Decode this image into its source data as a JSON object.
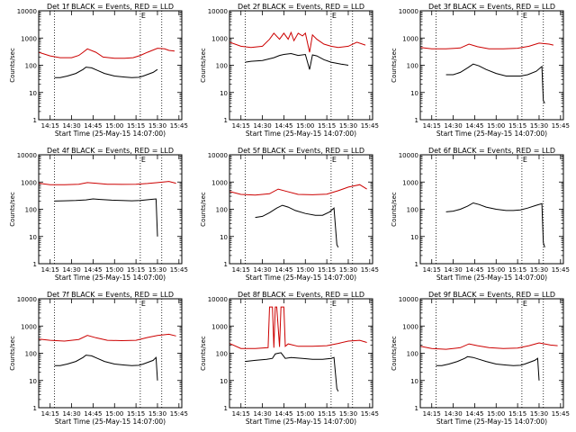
{
  "chart_data": [
    {
      "type": "line",
      "title": "Det 1f BLACK = Events, RED = LLD",
      "xlabel": "Start Time (25-May-15 14:07:00)",
      "ylabel": "Counts/sec",
      "x_ticks": [
        "14:15",
        "14:30",
        "14:45",
        "15:00",
        "15:15",
        "15:30",
        "15:45"
      ],
      "y_ticks": [
        "1",
        "10",
        "100",
        "1000",
        "10000"
      ],
      "yscale": "log",
      "ylim": [
        1,
        10000
      ],
      "xlim": [
        "14:07",
        "15:47"
      ],
      "markers": [
        "14:18",
        "15:18",
        "15:33"
      ],
      "flag": "E",
      "series": [
        {
          "color": "#cc0000",
          "x": [
            "14:07",
            "14:15",
            "14:22",
            "14:30",
            "14:35",
            "14:38",
            "14:41",
            "14:47",
            "14:52",
            "15:00",
            "15:07",
            "15:13",
            "15:18",
            "15:23",
            "15:30",
            "15:35",
            "15:38",
            "15:42"
          ],
          "y": [
            300,
            220,
            190,
            190,
            230,
            300,
            400,
            300,
            200,
            180,
            180,
            190,
            230,
            300,
            420,
            400,
            350,
            330
          ]
        },
        {
          "color": "#000000",
          "x": [
            "14:18",
            "14:22",
            "14:27",
            "14:33",
            "14:38",
            "14:40",
            "14:44",
            "14:48",
            "14:53",
            "15:00",
            "15:07",
            "15:12",
            "15:17",
            "15:20",
            "15:27",
            "15:30"
          ],
          "y": [
            35,
            35,
            40,
            50,
            70,
            85,
            80,
            65,
            50,
            40,
            37,
            35,
            36,
            40,
            55,
            70
          ]
        }
      ]
    },
    {
      "type": "line",
      "title": "Det 2f BLACK = Events, RED = LLD",
      "xlabel": "Start Time (25-May-15 14:07:00)",
      "ylabel": "Counts/sec",
      "x_ticks": [
        "14:15",
        "14:30",
        "14:45",
        "15:00",
        "15:15",
        "15:30",
        "15:45"
      ],
      "y_ticks": [
        "1",
        "10",
        "100",
        "1000",
        "10000"
      ],
      "yscale": "log",
      "ylim": [
        1,
        10000
      ],
      "xlim": [
        "14:07",
        "15:47"
      ],
      "markers": [
        "14:18",
        "15:18",
        "15:33"
      ],
      "flag": "E",
      "series": [
        {
          "color": "#cc0000",
          "x": [
            "14:07",
            "14:15",
            "14:22",
            "14:30",
            "14:35",
            "14:38",
            "14:42",
            "14:45",
            "14:48",
            "14:50",
            "14:52",
            "14:55",
            "14:58",
            "15:00",
            "15:03",
            "15:05",
            "15:08",
            "15:13",
            "15:18",
            "15:23",
            "15:30",
            "15:36",
            "15:42"
          ],
          "y": [
            700,
            500,
            450,
            500,
            900,
            1500,
            900,
            1500,
            900,
            1600,
            800,
            1500,
            1200,
            1500,
            300,
            1300,
            900,
            600,
            500,
            450,
            500,
            700,
            550
          ]
        },
        {
          "color": "#000000",
          "x": [
            "14:18",
            "14:22",
            "14:30",
            "14:38",
            "14:42",
            "14:45",
            "14:50",
            "14:55",
            "15:00",
            "15:03",
            "15:05",
            "15:08",
            "15:13",
            "15:18",
            "15:25",
            "15:30"
          ],
          "y": [
            130,
            140,
            150,
            190,
            230,
            250,
            270,
            230,
            250,
            70,
            240,
            220,
            160,
            130,
            110,
            100
          ]
        }
      ]
    },
    {
      "type": "line",
      "title": "Det 3f BLACK = Events, RED = LLD",
      "xlabel": "Start Time (25-May-15 14:07:00)",
      "ylabel": "Counts/sec",
      "x_ticks": [
        "14:15",
        "14:30",
        "14:45",
        "15:00",
        "15:15",
        "15:30",
        "15:45"
      ],
      "y_ticks": [
        "1",
        "10",
        "100",
        "1000",
        "10000"
      ],
      "yscale": "log",
      "ylim": [
        1,
        10000
      ],
      "xlim": [
        "14:07",
        "15:47"
      ],
      "markers": [
        "14:18",
        "15:18",
        "15:33"
      ],
      "flag": "E",
      "series": [
        {
          "color": "#cc0000",
          "x": [
            "14:07",
            "14:15",
            "14:25",
            "14:35",
            "14:41",
            "14:47",
            "14:55",
            "15:05",
            "15:15",
            "15:23",
            "15:30",
            "15:37",
            "15:40"
          ],
          "y": [
            450,
            400,
            400,
            430,
            600,
            480,
            400,
            400,
            420,
            500,
            650,
            600,
            550
          ]
        },
        {
          "color": "#000000",
          "x": [
            "14:25",
            "14:30",
            "14:35",
            "14:40",
            "14:44",
            "14:48",
            "14:53",
            "15:00",
            "15:07",
            "15:12",
            "15:17",
            "15:22",
            "15:28",
            "15:32",
            "15:33",
            "15:34"
          ],
          "y": [
            45,
            45,
            55,
            80,
            110,
            95,
            70,
            50,
            40,
            40,
            40,
            45,
            60,
            90,
            5,
            4
          ]
        }
      ]
    },
    {
      "type": "line",
      "title": "Det 4f BLACK = Events, RED = LLD",
      "xlabel": "Start Time (25-May-15 14:07:00)",
      "ylabel": "Counts/sec",
      "x_ticks": [
        "14:15",
        "14:30",
        "14:45",
        "15:00",
        "15:15",
        "15:30",
        "15:45"
      ],
      "y_ticks": [
        "1",
        "10",
        "100",
        "1000",
        "10000"
      ],
      "yscale": "log",
      "ylim": [
        1,
        10000
      ],
      "xlim": [
        "14:07",
        "15:47"
      ],
      "markers": [
        "14:18",
        "15:18",
        "15:33"
      ],
      "flag": "E",
      "series": [
        {
          "color": "#cc0000",
          "x": [
            "14:07",
            "14:15",
            "14:25",
            "14:35",
            "14:41",
            "14:47",
            "14:55",
            "15:05",
            "15:15",
            "15:23",
            "15:30",
            "15:38",
            "15:43"
          ],
          "y": [
            900,
            800,
            800,
            830,
            950,
            900,
            830,
            820,
            830,
            880,
            950,
            1050,
            900
          ]
        },
        {
          "color": "#000000",
          "x": [
            "14:18",
            "14:25",
            "14:33",
            "14:40",
            "14:45",
            "14:50",
            "14:58",
            "15:05",
            "15:12",
            "15:18",
            "15:25",
            "15:29",
            "15:30"
          ],
          "y": [
            200,
            205,
            210,
            220,
            240,
            230,
            215,
            210,
            205,
            210,
            230,
            240,
            10
          ]
        }
      ]
    },
    {
      "type": "line",
      "title": "Det 5f BLACK = Events, RED = LLD",
      "xlabel": "Start Time (25-May-15 14:07:00)",
      "ylabel": "Counts/sec",
      "x_ticks": [
        "14:15",
        "14:30",
        "14:45",
        "15:00",
        "15:15",
        "15:30",
        "15:45"
      ],
      "y_ticks": [
        "1",
        "10",
        "100",
        "1000",
        "10000"
      ],
      "yscale": "log",
      "ylim": [
        1,
        10000
      ],
      "xlim": [
        "14:07",
        "15:47"
      ],
      "markers": [
        "14:18",
        "15:18",
        "15:33"
      ],
      "flag": "E",
      "series": [
        {
          "color": "#cc0000",
          "x": [
            "14:07",
            "14:15",
            "14:25",
            "14:35",
            "14:41",
            "14:47",
            "14:55",
            "15:05",
            "15:15",
            "15:23",
            "15:30",
            "15:38",
            "15:43"
          ],
          "y": [
            450,
            350,
            330,
            370,
            550,
            450,
            350,
            340,
            360,
            480,
            650,
            800,
            550
          ]
        },
        {
          "color": "#000000",
          "x": [
            "14:25",
            "14:30",
            "14:35",
            "14:40",
            "14:44",
            "14:48",
            "14:53",
            "15:00",
            "15:07",
            "15:12",
            "15:17",
            "15:20",
            "15:22",
            "15:23"
          ],
          "y": [
            50,
            55,
            75,
            110,
            140,
            120,
            90,
            70,
            60,
            60,
            80,
            110,
            5,
            4
          ]
        }
      ]
    },
    {
      "type": "line",
      "title": "Det 6f BLACK = Events, RED = LLD",
      "xlabel": "Start Time (25-May-15 14:07:00)",
      "ylabel": "Counts/sec",
      "x_ticks": [
        "14:15",
        "14:30",
        "14:45",
        "15:00",
        "15:15",
        "15:30",
        "15:45"
      ],
      "y_ticks": [
        "1",
        "10",
        "100",
        "1000",
        "10000"
      ],
      "yscale": "log",
      "ylim": [
        1,
        10000
      ],
      "xlim": [
        "14:07",
        "15:47"
      ],
      "markers": [
        "14:18",
        "15:18",
        "15:33"
      ],
      "flag": "E",
      "series": [
        {
          "color": "#000000",
          "x": [
            "14:25",
            "14:30",
            "14:35",
            "14:40",
            "14:44",
            "14:48",
            "14:53",
            "15:00",
            "15:07",
            "15:12",
            "15:17",
            "15:22",
            "15:28",
            "15:32",
            "15:33",
            "15:34"
          ],
          "y": [
            80,
            85,
            100,
            130,
            170,
            150,
            120,
            100,
            90,
            90,
            95,
            110,
            140,
            160,
            6,
            4
          ]
        }
      ]
    },
    {
      "type": "line",
      "title": "Det 7f BLACK = Events, RED = LLD",
      "xlabel": "Start Time (25-May-15 14:07:00)",
      "ylabel": "Counts/sec",
      "x_ticks": [
        "14:15",
        "14:30",
        "14:45",
        "15:00",
        "15:15",
        "15:30",
        "15:45"
      ],
      "y_ticks": [
        "1",
        "10",
        "100",
        "1000",
        "10000"
      ],
      "yscale": "log",
      "ylim": [
        1,
        10000
      ],
      "xlim": [
        "14:07",
        "15:47"
      ],
      "markers": [
        "14:18",
        "15:18",
        "15:33"
      ],
      "flag": "E",
      "series": [
        {
          "color": "#cc0000",
          "x": [
            "14:07",
            "14:15",
            "14:25",
            "14:35",
            "14:41",
            "14:47",
            "14:55",
            "15:05",
            "15:15",
            "15:23",
            "15:30",
            "15:38",
            "15:43"
          ],
          "y": [
            330,
            300,
            280,
            320,
            450,
            370,
            300,
            290,
            300,
            380,
            450,
            500,
            430
          ]
        },
        {
          "color": "#000000",
          "x": [
            "14:18",
            "14:22",
            "14:27",
            "14:33",
            "14:38",
            "14:40",
            "14:44",
            "14:48",
            "14:53",
            "15:00",
            "15:07",
            "15:12",
            "15:17",
            "15:20",
            "15:27",
            "15:29",
            "15:30"
          ],
          "y": [
            35,
            35,
            40,
            50,
            70,
            85,
            80,
            65,
            50,
            40,
            37,
            35,
            36,
            40,
            55,
            70,
            10
          ]
        }
      ]
    },
    {
      "type": "line",
      "title": "Det 8f BLACK = Events, RED = LLD",
      "xlabel": "Start Time (25-May-15 14:07:00)",
      "ylabel": "Counts/sec",
      "x_ticks": [
        "14:15",
        "14:30",
        "14:45",
        "15:00",
        "15:15",
        "15:30",
        "15:45"
      ],
      "y_ticks": [
        "1",
        "10",
        "100",
        "1000",
        "10000"
      ],
      "yscale": "log",
      "ylim": [
        1,
        10000
      ],
      "xlim": [
        "14:07",
        "15:47"
      ],
      "markers": [
        "14:18",
        "15:18",
        "15:33"
      ],
      "flag": "E",
      "series": [
        {
          "color": "#cc0000",
          "x": [
            "14:07",
            "14:15",
            "14:25",
            "14:34",
            "14:35",
            "14:37",
            "14:38",
            "14:39",
            "14:40",
            "14:42",
            "14:43",
            "14:45",
            "14:46",
            "14:48",
            "14:55",
            "15:05",
            "15:15",
            "15:23",
            "15:30",
            "15:38",
            "15:43"
          ],
          "y": [
            230,
            150,
            150,
            160,
            5000,
            5000,
            160,
            5000,
            5000,
            170,
            5000,
            5000,
            180,
            220,
            180,
            180,
            190,
            230,
            280,
            300,
            250
          ]
        },
        {
          "color": "#000000",
          "x": [
            "14:18",
            "14:25",
            "14:33",
            "14:37",
            "14:39",
            "14:41",
            "14:43",
            "14:46",
            "14:50",
            "14:58",
            "15:05",
            "15:12",
            "15:18",
            "15:20",
            "15:22",
            "15:23"
          ],
          "y": [
            50,
            55,
            60,
            65,
            95,
            100,
            105,
            65,
            70,
            65,
            60,
            60,
            65,
            70,
            5,
            4
          ]
        }
      ]
    },
    {
      "type": "line",
      "title": "Det 9f BLACK = Events, RED = LLD",
      "xlabel": "Start Time (25-May-15 14:07:00)",
      "ylabel": "Counts/sec",
      "x_ticks": [
        "14:15",
        "14:30",
        "14:45",
        "15:00",
        "15:15",
        "15:30",
        "15:45"
      ],
      "y_ticks": [
        "1",
        "10",
        "100",
        "1000",
        "10000"
      ],
      "yscale": "log",
      "ylim": [
        1,
        10000
      ],
      "xlim": [
        "14:07",
        "15:47"
      ],
      "markers": [
        "14:18",
        "15:18",
        "15:33"
      ],
      "flag": "E",
      "series": [
        {
          "color": "#cc0000",
          "x": [
            "14:07",
            "14:15",
            "14:25",
            "14:35",
            "14:41",
            "14:47",
            "14:55",
            "15:05",
            "15:15",
            "15:23",
            "15:30",
            "15:38",
            "15:43"
          ],
          "y": [
            180,
            150,
            140,
            160,
            220,
            190,
            160,
            150,
            155,
            190,
            240,
            200,
            190
          ]
        },
        {
          "color": "#000000",
          "x": [
            "14:18",
            "14:22",
            "14:27",
            "14:33",
            "14:38",
            "14:40",
            "14:44",
            "14:48",
            "14:53",
            "15:00",
            "15:07",
            "15:12",
            "15:17",
            "15:20",
            "15:27",
            "15:29",
            "15:30"
          ],
          "y": [
            35,
            35,
            40,
            50,
            65,
            75,
            70,
            60,
            50,
            40,
            37,
            35,
            36,
            40,
            55,
            65,
            10
          ]
        }
      ]
    }
  ]
}
